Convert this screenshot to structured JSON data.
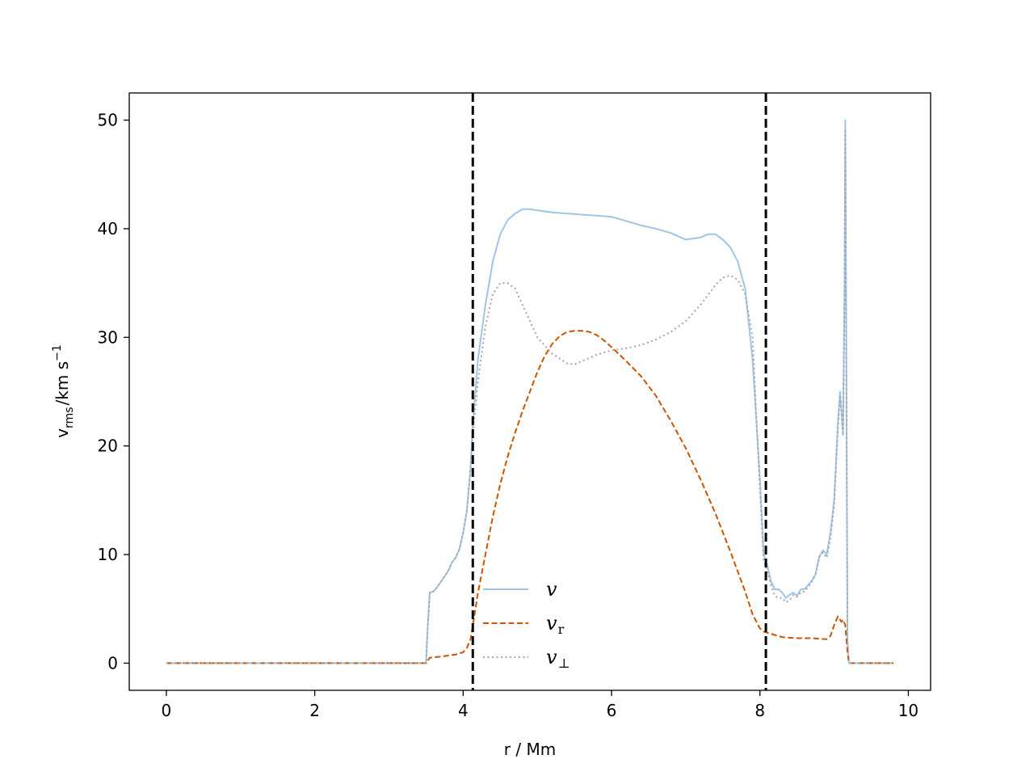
{
  "chart_data": {
    "type": "line",
    "xlabel": "r / Mm",
    "ylabel": {
      "base": "v",
      "sub": "rms",
      "unit": "/km s",
      "sup": "−1"
    },
    "xlim": [
      -0.5,
      10.3
    ],
    "ylim": [
      -2.5,
      52.5
    ],
    "xticks": [
      0,
      2,
      4,
      6,
      8,
      10
    ],
    "yticks": [
      0,
      10,
      20,
      30,
      40,
      50
    ],
    "grid": false,
    "legend_placement": "lower-center",
    "vlines": [
      4.13,
      8.08
    ],
    "vline_color": "#000000",
    "series": [
      {
        "name": "v",
        "sub": "",
        "color": "#9fc5e8",
        "dash": "solid",
        "x": [
          0,
          3.5,
          3.52,
          3.55,
          3.6,
          3.65,
          3.7,
          3.75,
          3.8,
          3.85,
          3.9,
          3.95,
          4.0,
          4.05,
          4.1,
          4.13,
          4.2,
          4.3,
          4.4,
          4.5,
          4.6,
          4.7,
          4.8,
          4.9,
          5.0,
          5.2,
          5.4,
          5.6,
          5.8,
          6.0,
          6.2,
          6.4,
          6.6,
          6.8,
          7.0,
          7.2,
          7.3,
          7.4,
          7.5,
          7.6,
          7.7,
          7.8,
          7.9,
          8.0,
          8.05,
          8.1,
          8.15,
          8.2,
          8.25,
          8.3,
          8.35,
          8.4,
          8.45,
          8.5,
          8.55,
          8.6,
          8.65,
          8.7,
          8.75,
          8.8,
          8.85,
          8.9,
          8.95,
          9.0,
          9.05,
          9.08,
          9.1,
          9.12,
          9.14,
          9.15,
          9.16,
          9.18,
          9.2,
          9.8
        ],
        "y": [
          0,
          0,
          3,
          6.5,
          6.6,
          7.0,
          7.5,
          8,
          8.5,
          9.3,
          9.7,
          10.5,
          12,
          14,
          18,
          22,
          28,
          33,
          37,
          39.5,
          40.8,
          41.4,
          41.8,
          41.8,
          41.7,
          41.5,
          41.4,
          41.3,
          41.2,
          41.1,
          40.7,
          40.3,
          40.0,
          39.6,
          39.0,
          39.2,
          39.5,
          39.5,
          39.0,
          38.3,
          37.0,
          34.5,
          28,
          17,
          10,
          9.0,
          7.5,
          6.8,
          6.8,
          6.5,
          6.0,
          6.3,
          6.5,
          6.2,
          6.8,
          6.8,
          7.2,
          7.6,
          8.2,
          9.8,
          10.4,
          10.0,
          12,
          15,
          22,
          25,
          23,
          21,
          35,
          50,
          35,
          2,
          0,
          0
        ]
      },
      {
        "name": "v",
        "sub": "r",
        "color": "#cc5500",
        "dash": "dashed",
        "x": [
          0,
          3.5,
          3.55,
          3.7,
          3.9,
          4.0,
          4.05,
          4.1,
          4.13,
          4.2,
          4.3,
          4.4,
          4.5,
          4.6,
          4.7,
          4.8,
          4.9,
          5.0,
          5.1,
          5.2,
          5.3,
          5.4,
          5.5,
          5.6,
          5.7,
          5.8,
          5.9,
          6.0,
          6.2,
          6.4,
          6.6,
          6.8,
          7.0,
          7.2,
          7.4,
          7.6,
          7.8,
          7.9,
          8.0,
          8.05,
          8.1,
          8.2,
          8.3,
          8.5,
          8.7,
          8.9,
          8.95,
          9.0,
          9.05,
          9.1,
          9.12,
          9.15,
          9.18,
          9.2,
          9.8
        ],
        "y": [
          0,
          0,
          0.5,
          0.6,
          0.8,
          1.0,
          1.4,
          2.2,
          3.5,
          6.5,
          10,
          13.5,
          16.5,
          19,
          21.2,
          23.2,
          25,
          26.8,
          28.3,
          29.4,
          30.1,
          30.5,
          30.6,
          30.6,
          30.5,
          30.2,
          29.7,
          29.1,
          27.8,
          26.4,
          24.6,
          22.3,
          19.8,
          16.9,
          13.8,
          10.3,
          6.6,
          4.5,
          3.2,
          2.9,
          2.8,
          2.6,
          2.4,
          2.3,
          2.3,
          2.2,
          2.5,
          3.5,
          4.3,
          3.8,
          4.0,
          3.5,
          1.0,
          0,
          0
        ]
      },
      {
        "name": "v",
        "sub": "⊥",
        "color": "#a6a6a6",
        "dash": "dotted",
        "x": [
          0,
          3.5,
          3.52,
          3.55,
          3.6,
          3.65,
          3.7,
          3.75,
          3.8,
          3.85,
          3.9,
          3.95,
          4.0,
          4.05,
          4.1,
          4.13,
          4.2,
          4.3,
          4.4,
          4.5,
          4.6,
          4.7,
          4.8,
          4.9,
          5.0,
          5.2,
          5.4,
          5.5,
          5.6,
          5.8,
          6.0,
          6.2,
          6.4,
          6.6,
          6.8,
          7.0,
          7.2,
          7.4,
          7.5,
          7.6,
          7.7,
          7.8,
          7.9,
          8.0,
          8.05,
          8.1,
          8.15,
          8.2,
          8.25,
          8.3,
          8.35,
          8.4,
          8.45,
          8.5,
          8.55,
          8.6,
          8.65,
          8.7,
          8.75,
          8.8,
          8.85,
          8.9,
          8.95,
          9.0,
          9.05,
          9.08,
          9.1,
          9.12,
          9.14,
          9.15,
          9.16,
          9.18,
          9.2,
          9.8
        ],
        "y": [
          0,
          0,
          3,
          6.5,
          6.6,
          7.0,
          7.5,
          8,
          8.5,
          9.3,
          9.7,
          10.5,
          12,
          14,
          18,
          21,
          26,
          31,
          34,
          35,
          35,
          34.5,
          33,
          31.5,
          30.0,
          28.5,
          27.6,
          27.5,
          27.8,
          28.4,
          28.8,
          29.0,
          29.3,
          29.8,
          30.5,
          31.5,
          33.0,
          34.8,
          35.5,
          35.7,
          35.3,
          34.0,
          30,
          16,
          9.5,
          8.5,
          7.2,
          6.2,
          6.0,
          6.0,
          5.6,
          5.8,
          6.3,
          6.1,
          6.5,
          6.6,
          7.0,
          7.5,
          8.2,
          9.8,
          10.2,
          9.7,
          11.5,
          14.5,
          21.5,
          24.5,
          23,
          21,
          34,
          49,
          34,
          2,
          0,
          0
        ]
      }
    ]
  }
}
